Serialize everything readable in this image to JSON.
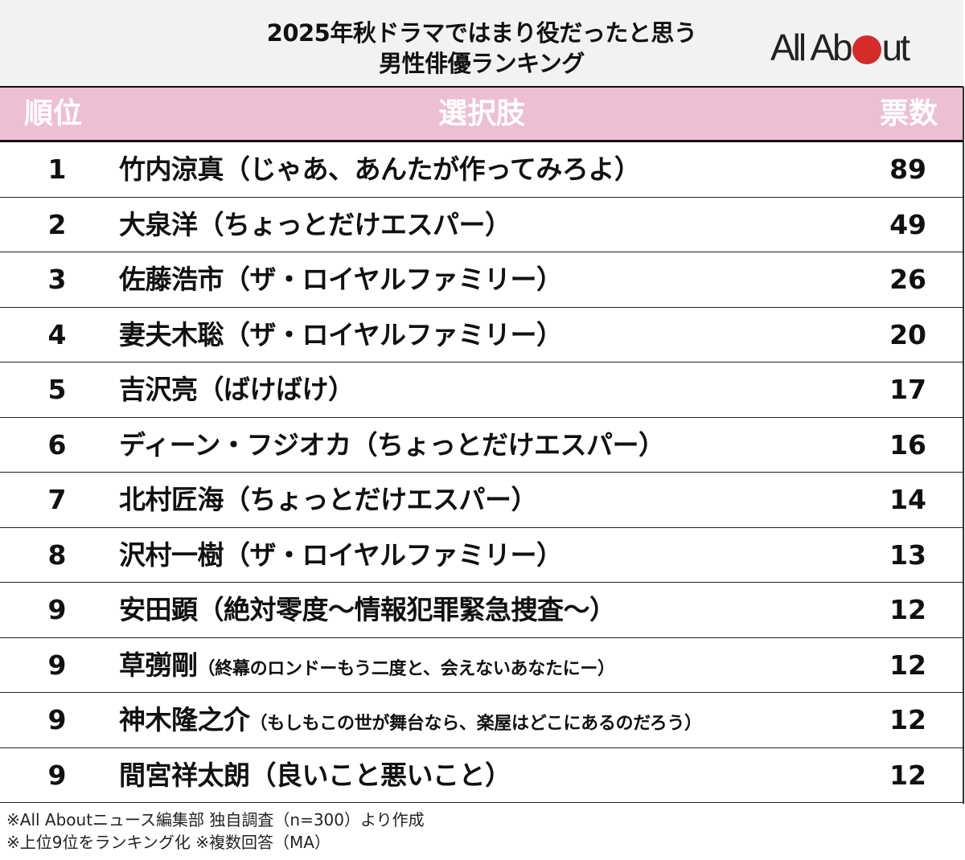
{
  "title": {
    "line1": "2025年秋ドラマではまり役だったと思う",
    "line2": "男性俳優ランキング"
  },
  "logo": {
    "text_left": "All Ab",
    "text_right": "ut",
    "dot_color": "#d52b2b"
  },
  "header": {
    "rank": "順位",
    "choice": "選択肢",
    "votes": "票数",
    "bg_color": "#ecbfd4"
  },
  "rows": [
    {
      "rank": "1",
      "name": "竹内涼真",
      "drama": "（じゃあ、あんたが作ってみろよ）",
      "votes": "89"
    },
    {
      "rank": "2",
      "name": "大泉洋",
      "drama": "（ちょっとだけエスパー）",
      "votes": "49"
    },
    {
      "rank": "3",
      "name": "佐藤浩市",
      "drama": "（ザ・ロイヤルファミリー）",
      "votes": "26"
    },
    {
      "rank": "4",
      "name": "妻夫木聡",
      "drama": "（ザ・ロイヤルファミリー）",
      "votes": "20"
    },
    {
      "rank": "5",
      "name": "吉沢亮",
      "drama": "（ばけばけ）",
      "votes": "17"
    },
    {
      "rank": "6",
      "name": "ディーン・フジオカ",
      "drama": "（ちょっとだけエスパー）",
      "votes": "16"
    },
    {
      "rank": "7",
      "name": "北村匠海",
      "drama": "（ちょっとだけエスパー）",
      "votes": "14"
    },
    {
      "rank": "8",
      "name": "沢村一樹",
      "drama": "（ザ・ロイヤルファミリー）",
      "votes": "13"
    },
    {
      "rank": "9",
      "name": "安田顕",
      "drama": "（絶対零度〜情報犯罪緊急捜査〜）",
      "votes": "12"
    },
    {
      "rank": "9",
      "name": "草彅剛",
      "drama": "（終幕のロンドーもう二度と、会えないあなたにー）",
      "votes": "12"
    },
    {
      "rank": "9",
      "name": "神木隆之介",
      "drama": "（もしもこの世が舞台なら、楽屋はどこにあるのだろう）",
      "votes": "12"
    },
    {
      "rank": "9",
      "name": "間宮祥太朗",
      "drama": "（良いこと悪いこと）",
      "votes": "12"
    }
  ],
  "notes": {
    "line1": "※All Aboutニュース編集部 独自調査（n=300）より作成",
    "line2": "※上位9位をランキング化 ※複数回答（MA）"
  },
  "chart_data": {
    "type": "table",
    "title": "2025年秋ドラマではまり役だったと思う男性俳優ランキング",
    "columns": [
      "順位",
      "選択肢",
      "票数"
    ],
    "categories": [
      "竹内涼真（じゃあ、あんたが作ってみろよ）",
      "大泉洋（ちょっとだけエスパー）",
      "佐藤浩市（ザ・ロイヤルファミリー）",
      "妻夫木聡（ザ・ロイヤルファミリー）",
      "吉沢亮（ばけばけ）",
      "ディーン・フジオカ（ちょっとだけエスパー）",
      "北村匠海（ちょっとだけエスパー）",
      "沢村一樹（ザ・ロイヤルファミリー）",
      "安田顕（絶対零度〜情報犯罪緊急捜査〜）",
      "草彅剛（終幕のロンドーもう二度と、会えないあなたにー）",
      "神木隆之介（もしもこの世が舞台なら、楽屋はどこにあるのだろう）",
      "間宮祥太朗（良いこと悪いこと）"
    ],
    "ranks": [
      1,
      2,
      3,
      4,
      5,
      6,
      7,
      8,
      9,
      9,
      9,
      9
    ],
    "values": [
      89,
      49,
      26,
      20,
      17,
      16,
      14,
      13,
      12,
      12,
      12,
      12
    ],
    "annotations": [
      "※All Aboutニュース編集部 独自調査（n=300）より作成",
      "※上位9位をランキング化 ※複数回答（MA）"
    ]
  }
}
